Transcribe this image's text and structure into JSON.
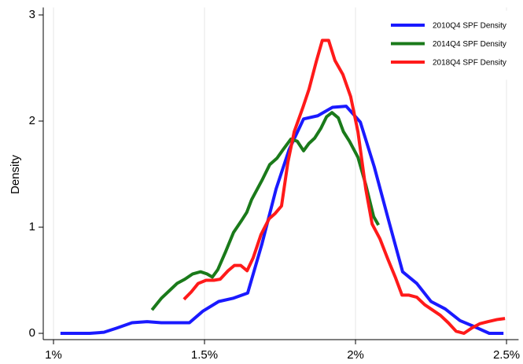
{
  "chart_data": {
    "type": "line",
    "y_label": "Density",
    "xlim": [
      0.97,
      2.54
    ],
    "ylim": [
      -0.06,
      3.07
    ],
    "xticks": [
      {
        "value": 1,
        "label": "1%"
      },
      {
        "value": 1.5,
        "label": "1.5%"
      },
      {
        "value": 2,
        "label": "2%"
      },
      {
        "value": 2.5,
        "label": "2.5%"
      }
    ],
    "yticks": [
      0,
      1,
      2,
      3
    ],
    "grid": "x",
    "legend": "top-right",
    "series": [
      {
        "name": "2010Q4 SPF Density",
        "color": "#1a1aff",
        "x": [
          1.023,
          1.07,
          1.12,
          1.167,
          1.21,
          1.26,
          1.31,
          1.357,
          1.4,
          1.45,
          1.495,
          1.547,
          1.594,
          1.643,
          1.69,
          1.737,
          1.78,
          1.828,
          1.875,
          1.924,
          1.969,
          2.016,
          2.062,
          2.11,
          2.156,
          2.203,
          2.25,
          2.297,
          2.346,
          2.396,
          2.443,
          2.49
        ],
        "values": [
          0,
          0,
          0,
          0.01,
          0.05,
          0.1,
          0.11,
          0.1,
          0.1,
          0.1,
          0.21,
          0.3,
          0.33,
          0.38,
          0.84,
          1.36,
          1.73,
          2.02,
          2.05,
          2.13,
          2.14,
          1.99,
          1.57,
          1.06,
          0.58,
          0.47,
          0.3,
          0.23,
          0.12,
          0.06,
          0,
          0
        ]
      },
      {
        "name": "2014Q4 SPF Density",
        "color": "#1a7a1a",
        "x": [
          1.326,
          1.357,
          1.383,
          1.409,
          1.435,
          1.461,
          1.487,
          1.508,
          1.526,
          1.544,
          1.57,
          1.596,
          1.622,
          1.64,
          1.656,
          1.69,
          1.716,
          1.74,
          1.76,
          1.786,
          1.807,
          1.828,
          1.846,
          1.865,
          1.885,
          1.904,
          1.922,
          1.943,
          1.96,
          1.98,
          2.008,
          2.034,
          2.06,
          2.076
        ],
        "values": [
          0.22,
          0.33,
          0.4,
          0.47,
          0.51,
          0.56,
          0.58,
          0.56,
          0.53,
          0.6,
          0.77,
          0.95,
          1.06,
          1.14,
          1.26,
          1.44,
          1.59,
          1.65,
          1.73,
          1.83,
          1.81,
          1.72,
          1.79,
          1.84,
          1.93,
          2.04,
          2.08,
          2.03,
          1.9,
          1.81,
          1.66,
          1.4,
          1.1,
          1.02
        ]
      },
      {
        "name": "2018Q4 SPF Density",
        "color": "#ff1a1a",
        "x": [
          1.432,
          1.456,
          1.479,
          1.505,
          1.531,
          1.552,
          1.578,
          1.599,
          1.62,
          1.641,
          1.661,
          1.687,
          1.714,
          1.734,
          1.755,
          1.776,
          1.797,
          1.826,
          1.846,
          1.87,
          1.89,
          1.911,
          1.932,
          1.958,
          1.984,
          2.008,
          2.034,
          2.055,
          2.081,
          2.107,
          2.133,
          2.154,
          2.177,
          2.203,
          2.229,
          2.255,
          2.281,
          2.307,
          2.333,
          2.359,
          2.385,
          2.411,
          2.438,
          2.469,
          2.495
        ],
        "values": [
          0.32,
          0.39,
          0.47,
          0.5,
          0.5,
          0.51,
          0.59,
          0.64,
          0.64,
          0.59,
          0.71,
          0.93,
          1.08,
          1.13,
          1.2,
          1.61,
          1.9,
          2.13,
          2.3,
          2.56,
          2.76,
          2.76,
          2.57,
          2.44,
          2.23,
          1.9,
          1.36,
          1.03,
          0.89,
          0.7,
          0.52,
          0.36,
          0.36,
          0.34,
          0.27,
          0.22,
          0.17,
          0.1,
          0.02,
          0,
          0.05,
          0.09,
          0.11,
          0.13,
          0.14
        ]
      }
    ]
  }
}
